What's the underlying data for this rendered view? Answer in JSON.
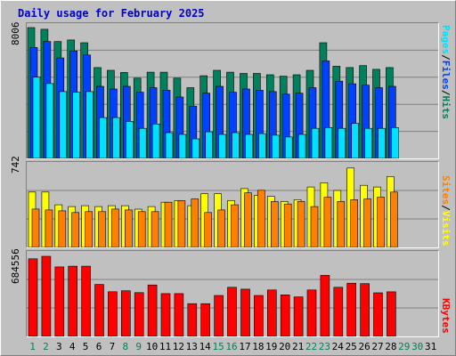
{
  "title": "Daily usage for February 2025",
  "colors": {
    "hits": "#00805c",
    "files": "#0040ff",
    "pages": "#00e0ff",
    "visits": "#ffff00",
    "sites": "#ff8000",
    "kbytes": "#ff0000",
    "weekday": "#000000",
    "weekend": "#00805c",
    "future": "#00805c"
  },
  "labels": {
    "hits_files_pages": [
      "Pages",
      "/",
      "Files",
      "/",
      "Hits"
    ],
    "visits_sites": [
      "Sites",
      "/",
      "Visits"
    ],
    "kbytes": "KBytes"
  },
  "ymax": {
    "hits": "8006",
    "visits": "742",
    "kbytes": "684556"
  },
  "chart_data": [
    {
      "type": "bar",
      "title": "Daily usage for February 2025",
      "ylabel": "Pages / Files / Hits",
      "ylim": [
        0,
        8006
      ],
      "categories": [
        "1",
        "2",
        "3",
        "4",
        "5",
        "6",
        "7",
        "8",
        "9",
        "10",
        "11",
        "12",
        "13",
        "14",
        "15",
        "16",
        "17",
        "18",
        "19",
        "20",
        "21",
        "22",
        "23",
        "24",
        "25",
        "26",
        "27",
        "28"
      ],
      "series": [
        {
          "name": "Hits",
          "values": [
            8006,
            7900,
            7150,
            7250,
            7080,
            5560,
            5390,
            5260,
            4910,
            5280,
            5280,
            4910,
            4330,
            5060,
            5390,
            5280,
            5200,
            5200,
            5120,
            5030,
            5120,
            5390,
            7080,
            5640,
            5560,
            5680,
            5450,
            5560
          ]
        },
        {
          "name": "Files",
          "values": [
            6790,
            7150,
            6150,
            6580,
            6330,
            4410,
            4250,
            4410,
            4050,
            4330,
            4170,
            3760,
            3190,
            3990,
            4410,
            4050,
            4250,
            4170,
            4090,
            3930,
            3990,
            4330,
            5970,
            4730,
            4570,
            4480,
            4330,
            4410
          ]
        },
        {
          "name": "Pages",
          "values": [
            4980,
            4580,
            4090,
            4050,
            4090,
            2500,
            2500,
            2270,
            1840,
            2110,
            1580,
            1470,
            1200,
            1630,
            1470,
            1580,
            1470,
            1520,
            1420,
            1310,
            1470,
            1840,
            1890,
            1840,
            2140,
            1840,
            1840,
            1890
          ]
        }
      ]
    },
    {
      "type": "bar",
      "ylabel": "Sites / Visits",
      "ylim": [
        0,
        742
      ],
      "categories": [
        "1",
        "2",
        "3",
        "4",
        "5",
        "6",
        "7",
        "8",
        "9",
        "10",
        "11",
        "12",
        "13",
        "14",
        "15",
        "16",
        "17",
        "18",
        "19",
        "20",
        "21",
        "22",
        "23",
        "24",
        "25",
        "26",
        "27",
        "28"
      ],
      "series": [
        {
          "name": "Visits",
          "values": [
            496,
            496,
            382,
            366,
            374,
            366,
            374,
            374,
            343,
            366,
            405,
            420,
            374,
            481,
            481,
            420,
            527,
            466,
            458,
            412,
            428,
            542,
            580,
            511,
            712,
            557,
            542,
            635
          ]
        },
        {
          "name": "Sites",
          "values": [
            344,
            336,
            328,
            313,
            321,
            321,
            344,
            336,
            321,
            321,
            405,
            420,
            435,
            313,
            336,
            382,
            489,
            512,
            412,
            389,
            412,
            366,
            450,
            412,
            428,
            435,
            451,
            496
          ]
        }
      ]
    },
    {
      "type": "bar",
      "ylabel": "KBytes",
      "ylim": [
        0,
        684556
      ],
      "categories": [
        "1",
        "2",
        "3",
        "4",
        "5",
        "6",
        "7",
        "8",
        "9",
        "10",
        "11",
        "12",
        "13",
        "14",
        "15",
        "16",
        "17",
        "18",
        "19",
        "20",
        "21",
        "22",
        "23",
        "24",
        "25",
        "26",
        "27",
        "28"
      ],
      "series": [
        {
          "name": "KBytes",
          "values": [
            663000,
            684556,
            594000,
            600000,
            600000,
            444000,
            382000,
            390000,
            374000,
            440000,
            366000,
            366000,
            280000,
            280000,
            350000,
            420000,
            404000,
            350000,
            397000,
            355000,
            338000,
            397000,
            522000,
            420000,
            455000,
            451000,
            373000,
            381000
          ]
        }
      ]
    }
  ],
  "x_labels": [
    {
      "t": "1",
      "k": "weekend"
    },
    {
      "t": "2",
      "k": "weekend"
    },
    {
      "t": "3",
      "k": "weekday"
    },
    {
      "t": "4",
      "k": "weekday"
    },
    {
      "t": "5",
      "k": "weekday"
    },
    {
      "t": "6",
      "k": "weekday"
    },
    {
      "t": "7",
      "k": "weekday"
    },
    {
      "t": "8",
      "k": "weekend"
    },
    {
      "t": "9",
      "k": "weekend"
    },
    {
      "t": "10",
      "k": "weekday"
    },
    {
      "t": "11",
      "k": "weekday"
    },
    {
      "t": "12",
      "k": "weekday"
    },
    {
      "t": "13",
      "k": "weekday"
    },
    {
      "t": "14",
      "k": "weekday"
    },
    {
      "t": "15",
      "k": "weekend"
    },
    {
      "t": "16",
      "k": "weekend"
    },
    {
      "t": "17",
      "k": "weekday"
    },
    {
      "t": "18",
      "k": "weekday"
    },
    {
      "t": "19",
      "k": "weekday"
    },
    {
      "t": "20",
      "k": "weekday"
    },
    {
      "t": "21",
      "k": "weekday"
    },
    {
      "t": "22",
      "k": "weekend"
    },
    {
      "t": "23",
      "k": "weekend"
    },
    {
      "t": "24",
      "k": "weekday"
    },
    {
      "t": "25",
      "k": "weekday"
    },
    {
      "t": "26",
      "k": "weekday"
    },
    {
      "t": "27",
      "k": "weekday"
    },
    {
      "t": "28",
      "k": "weekday"
    },
    {
      "t": "29",
      "k": "future"
    },
    {
      "t": "30",
      "k": "future"
    },
    {
      "t": "31",
      "k": "weekday"
    }
  ]
}
